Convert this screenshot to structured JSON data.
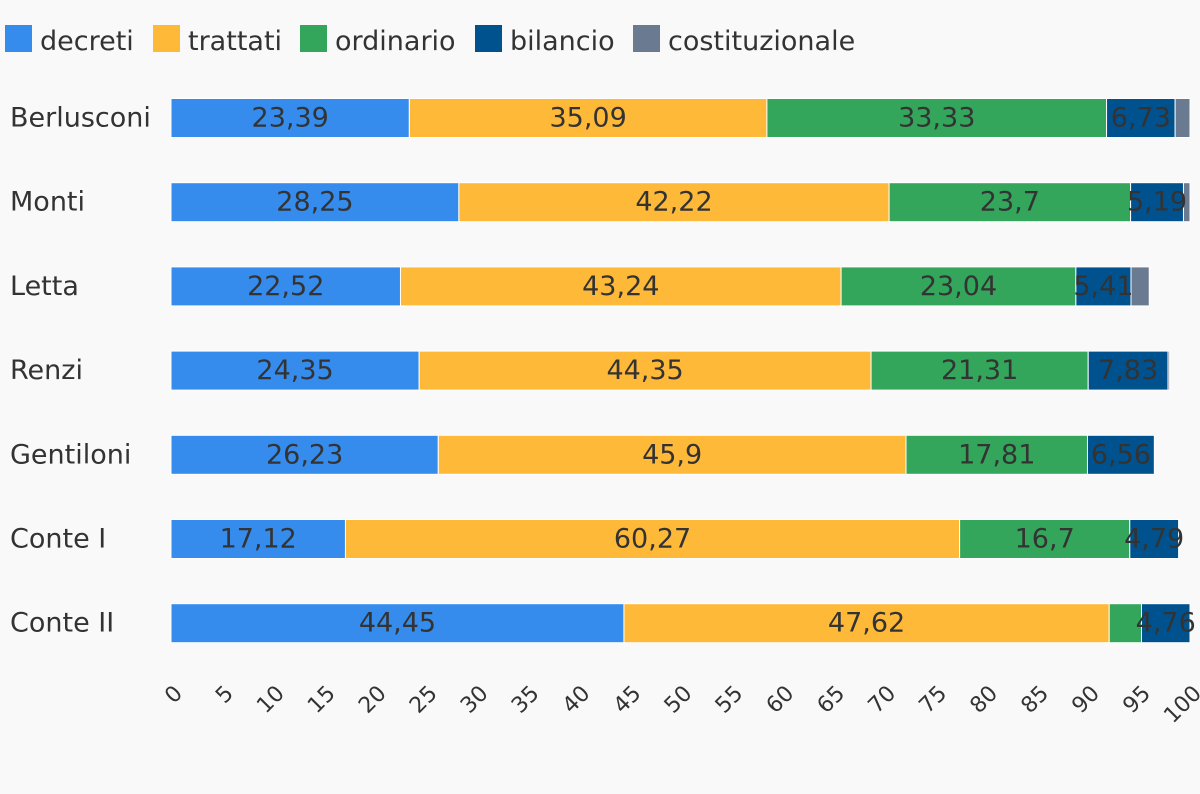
{
  "chart_data": {
    "type": "bar",
    "orientation": "horizontal",
    "stacked": true,
    "categories": [
      "Berlusconi",
      "Monti",
      "Letta",
      "Renzi",
      "Gentiloni",
      "Conte I",
      "Conte II"
    ],
    "series": [
      {
        "name": "decreti",
        "color": "#358ced",
        "values": [
          23.39,
          28.25,
          22.52,
          24.35,
          26.23,
          17.12,
          44.45
        ],
        "labels": [
          "23,39",
          "28,25",
          "22,52",
          "24,35",
          "26,23",
          "17,12",
          "44,45"
        ]
      },
      {
        "name": "trattati",
        "color": "#ffb938",
        "values": [
          35.09,
          42.22,
          43.24,
          44.35,
          45.9,
          60.27,
          47.62
        ],
        "labels": [
          "35,09",
          "42,22",
          "43,24",
          "44,35",
          "45,9",
          "60,27",
          "47,62"
        ]
      },
      {
        "name": "ordinario",
        "color": "#33a65b",
        "values": [
          33.33,
          23.7,
          23.04,
          21.31,
          17.81,
          16.7,
          3.17
        ],
        "labels": [
          "33,33",
          "23,7",
          "23,04",
          "21,31",
          "17,81",
          "16,7",
          ""
        ]
      },
      {
        "name": "bilancio",
        "color": "#00528f",
        "values": [
          6.73,
          5.19,
          5.41,
          7.83,
          6.56,
          4.79,
          4.76
        ],
        "labels": [
          "6,73",
          "5,19",
          "5,41",
          "7,83",
          "6,56",
          "4,79",
          "4,76"
        ]
      },
      {
        "name": "costituzionale",
        "color": "#6a7a91",
        "values": [
          1.46,
          0.64,
          1.79,
          0.16,
          0,
          0,
          0
        ],
        "labels": [
          "",
          "",
          "",
          "",
          "",
          "",
          ""
        ]
      }
    ],
    "xlim": [
      0,
      100
    ],
    "xticks": [
      "0",
      "5",
      "10",
      "15",
      "20",
      "25",
      "30",
      "35",
      "40",
      "45",
      "50",
      "55",
      "60",
      "65",
      "70",
      "75",
      "80",
      "85",
      "90",
      "95",
      "100"
    ],
    "legend_position": "top-left",
    "grid": false
  }
}
